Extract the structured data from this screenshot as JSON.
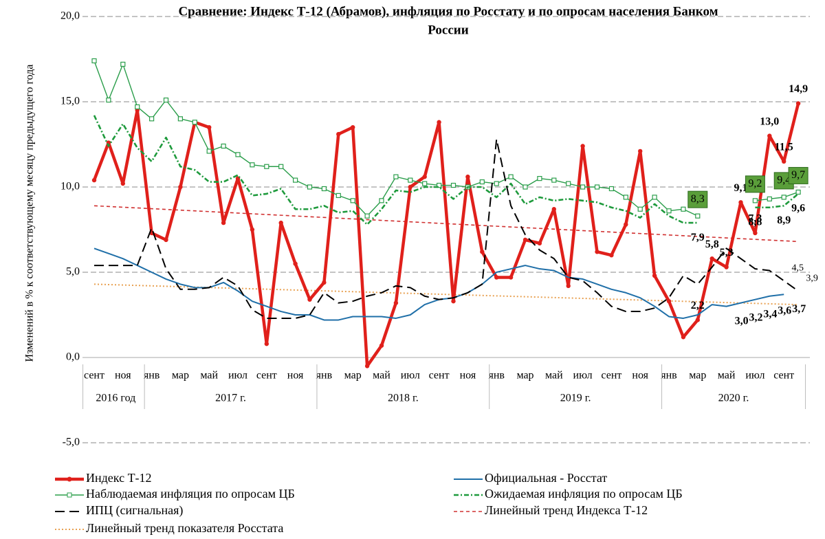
{
  "chart_data": {
    "type": "line",
    "title": [
      "Сравнение: Индекс Т-12 (Абрамов), инфляция по Росстату и по опросам населения Банком",
      "России"
    ],
    "ylabel": "Изменений в % к соответствующему месяцу предыдущего года",
    "categories": [
      "сент",
      null,
      "ноя",
      null,
      "янв",
      null,
      "мар",
      null,
      "май",
      null,
      "июл",
      null,
      "сент",
      null,
      "ноя",
      null,
      "янв",
      null,
      "мар",
      null,
      "май",
      null,
      "июл",
      null,
      "сент",
      null,
      "ноя",
      null,
      "янв",
      null,
      "мар",
      null,
      "май",
      null,
      "июл",
      null,
      "сент",
      null,
      "ноя",
      null,
      "янв",
      null,
      "мар",
      null,
      "май",
      null,
      "июл",
      null,
      "сент",
      null
    ],
    "groups": [
      {
        "label": "2016 год",
        "months": 4
      },
      {
        "label": "2017 г.",
        "months": 12
      },
      {
        "label": "2018 г.",
        "months": 12
      },
      {
        "label": "2019 г.",
        "months": 12
      },
      {
        "label": "2020 г.",
        "months": 10
      }
    ],
    "ylim": [
      -5,
      20
    ],
    "yticks": [
      {
        "value": -5,
        "label": "-5,0"
      },
      {
        "value": 0,
        "label": "0,0"
      },
      {
        "value": 5,
        "label": "5,0"
      },
      {
        "value": 10,
        "label": "10,0"
      },
      {
        "value": 15,
        "label": "15,0"
      },
      {
        "value": 20,
        "label": "20,0"
      }
    ],
    "grid": true,
    "series": [
      {
        "name": "Индекс Т-12",
        "color": "#e0201b",
        "values": [
          10.4,
          12.6,
          10.2,
          14.5,
          7.3,
          6.9,
          10.0,
          13.8,
          13.5,
          7.9,
          10.5,
          7.5,
          0.8,
          7.9,
          5.5,
          3.4,
          4.4,
          13.1,
          13.5,
          -0.5,
          0.7,
          3.2,
          10.0,
          10.6,
          13.8,
          3.3,
          10.6,
          6.2,
          4.7,
          4.7,
          6.9,
          6.7,
          8.7,
          4.2,
          12.4,
          6.2,
          6.0,
          7.8,
          12.1,
          4.8,
          3.3,
          1.2,
          2.2,
          5.8,
          5.3,
          9.1,
          7.3,
          13.0,
          11.5,
          14.9
        ],
        "value_labels": [
          null,
          null,
          null,
          null,
          null,
          null,
          null,
          null,
          null,
          null,
          null,
          null,
          null,
          null,
          null,
          null,
          null,
          null,
          null,
          null,
          null,
          null,
          null,
          null,
          null,
          null,
          null,
          null,
          null,
          null,
          null,
          null,
          null,
          null,
          null,
          null,
          null,
          null,
          null,
          null,
          null,
          null,
          "2,2",
          "5,8",
          "5,3",
          "9,1",
          "7,3",
          "13,0",
          "11,5",
          "14,9"
        ]
      },
      {
        "name": "Официальная - Росстат",
        "color": "#1f6fa8",
        "values": [
          6.4,
          6.1,
          5.8,
          5.4,
          5.0,
          4.6,
          4.3,
          4.1,
          4.1,
          4.4,
          3.9,
          3.3,
          3.0,
          2.7,
          2.5,
          2.5,
          2.2,
          2.2,
          2.4,
          2.4,
          2.4,
          2.3,
          2.5,
          3.1,
          3.4,
          3.5,
          3.8,
          4.3,
          5.0,
          5.2,
          5.4,
          5.2,
          5.1,
          4.7,
          4.6,
          4.3,
          4.0,
          3.8,
          3.5,
          3.0,
          2.4,
          2.3,
          2.5,
          3.1,
          3.0,
          3.2,
          3.4,
          3.6,
          3.7,
          null
        ],
        "value_labels": [
          null,
          null,
          null,
          null,
          null,
          null,
          null,
          null,
          null,
          null,
          null,
          null,
          null,
          null,
          null,
          null,
          null,
          null,
          null,
          null,
          null,
          null,
          null,
          null,
          null,
          null,
          null,
          null,
          null,
          null,
          null,
          null,
          null,
          null,
          null,
          null,
          null,
          null,
          null,
          null,
          null,
          null,
          null,
          null,
          "3,0",
          "3,2",
          "3,4",
          "3,6",
          "3,7",
          null
        ]
      },
      {
        "name": "Наблюдаемая  инфляция по опросам  ЦБ",
        "color": "#2a9d4a",
        "values": [
          17.4,
          15.1,
          17.2,
          14.7,
          14.0,
          15.1,
          14.0,
          13.8,
          12.1,
          12.4,
          11.9,
          11.3,
          11.2,
          11.2,
          10.4,
          10.0,
          9.9,
          9.5,
          9.2,
          8.3,
          9.2,
          10.6,
          10.4,
          10.2,
          10.1,
          10.1,
          10.0,
          10.3,
          10.2,
          10.6,
          10.0,
          10.5,
          10.4,
          10.2,
          10.0,
          10.0,
          9.9,
          9.4,
          8.7,
          9.4,
          8.6,
          8.7,
          8.3,
          null,
          null,
          null,
          9.2,
          9.3,
          9.4,
          9.7
        ],
        "value_labels": [
          null,
          null,
          null,
          null,
          null,
          null,
          null,
          null,
          null,
          null,
          null,
          null,
          null,
          null,
          null,
          null,
          null,
          null,
          null,
          null,
          null,
          null,
          null,
          null,
          null,
          null,
          null,
          null,
          null,
          null,
          null,
          null,
          null,
          null,
          null,
          null,
          null,
          null,
          null,
          null,
          null,
          null,
          "8,3",
          null,
          null,
          null,
          "9,2",
          null,
          "9,4",
          "9,7"
        ]
      },
      {
        "name": "Ожидаемая инфляция по опросам  ЦБ",
        "color": "#1e9a3c",
        "values": [
          14.2,
          12.4,
          13.7,
          12.3,
          11.5,
          12.9,
          11.2,
          11.0,
          10.3,
          10.3,
          10.7,
          9.5,
          9.6,
          9.9,
          8.7,
          8.7,
          8.9,
          8.5,
          8.6,
          7.8,
          8.7,
          9.8,
          9.7,
          10.0,
          10.0,
          9.3,
          10.0,
          10.0,
          9.4,
          10.2,
          9.0,
          9.4,
          9.2,
          9.3,
          9.2,
          9.1,
          8.8,
          8.6,
          8.2,
          9.0,
          8.3,
          7.9,
          7.9,
          null,
          null,
          null,
          8.8,
          8.8,
          8.9,
          9.6
        ],
        "value_labels": [
          null,
          null,
          null,
          null,
          null,
          null,
          null,
          null,
          null,
          null,
          null,
          null,
          null,
          null,
          null,
          null,
          null,
          null,
          null,
          null,
          null,
          null,
          null,
          null,
          null,
          null,
          null,
          null,
          null,
          null,
          null,
          null,
          null,
          null,
          null,
          null,
          null,
          null,
          null,
          null,
          null,
          null,
          "7,9",
          null,
          null,
          null,
          "8,8",
          null,
          "8,9",
          "9,6"
        ]
      },
      {
        "name": "ИПЦ (сигнальная)",
        "color": "#000000",
        "values": [
          5.4,
          5.4,
          5.4,
          5.4,
          7.6,
          5.2,
          4.0,
          4.0,
          4.1,
          4.7,
          4.2,
          2.8,
          2.3,
          2.3,
          2.3,
          2.5,
          3.8,
          3.2,
          3.3,
          3.6,
          3.8,
          4.2,
          4.1,
          3.6,
          3.4,
          3.5,
          3.8,
          4.3,
          12.8,
          8.9,
          7.2,
          6.3,
          5.8,
          4.7,
          4.5,
          3.8,
          3.0,
          2.7,
          2.7,
          2.9,
          3.5,
          4.8,
          4.3,
          5.3,
          6.4,
          5.8,
          5.2,
          5.1,
          4.5,
          3.9
        ],
        "value_labels": [
          null,
          null,
          null,
          null,
          null,
          null,
          null,
          null,
          null,
          null,
          null,
          null,
          null,
          null,
          null,
          null,
          null,
          null,
          null,
          null,
          null,
          null,
          null,
          null,
          null,
          null,
          null,
          null,
          null,
          null,
          null,
          null,
          null,
          null,
          null,
          null,
          null,
          null,
          null,
          null,
          null,
          null,
          null,
          null,
          null,
          null,
          null,
          null,
          "4,5",
          "3,9"
        ]
      }
    ],
    "trendlines": [
      {
        "name": "Линейный тренд Индекса  Т-12",
        "color": "#d03030",
        "start": 8.9,
        "end": 6.8
      },
      {
        "name": "Линейный тренд показателя  Росстата",
        "color": "#e8a050",
        "start": 4.3,
        "end": 3.1
      }
    ]
  }
}
